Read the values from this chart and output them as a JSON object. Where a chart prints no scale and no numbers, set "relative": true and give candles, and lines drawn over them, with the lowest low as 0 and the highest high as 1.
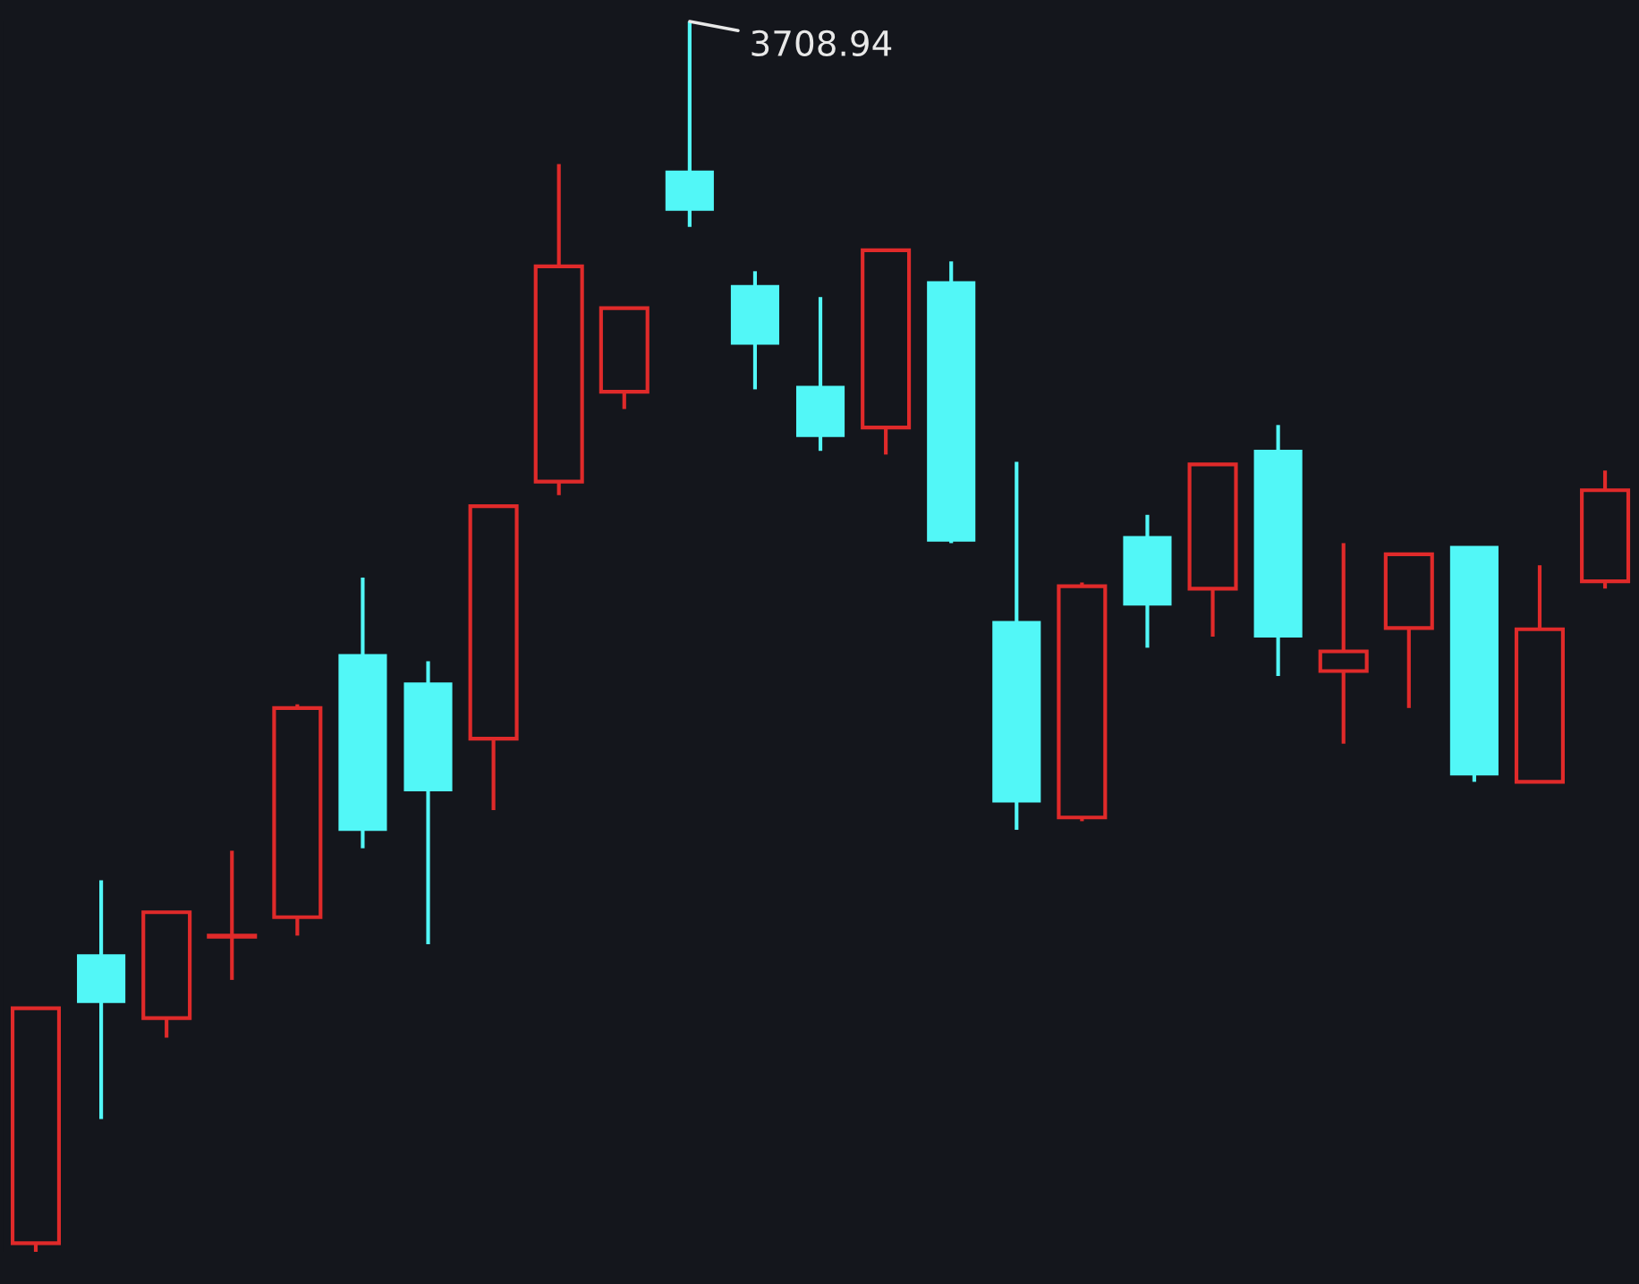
{
  "chart_data": {
    "type": "candlestick",
    "relative": true,
    "categories": [
      null,
      null,
      null,
      null,
      null,
      null,
      null,
      null,
      null,
      null,
      null,
      null,
      null,
      null,
      null,
      null,
      null,
      null,
      null,
      null,
      null,
      null,
      null,
      null,
      null
    ],
    "ohlc": [
      [
        0.007,
        0.199,
        0,
        0.198
      ],
      [
        0.241,
        0.302,
        0.108,
        0.203
      ],
      [
        0.19,
        0.276,
        0.174,
        0.276
      ],
      [
        0.256,
        0.326,
        0.221,
        0.257
      ],
      [
        0.272,
        0.445,
        0.257,
        0.442
      ],
      [
        0.485,
        0.548,
        0.328,
        0.343
      ],
      [
        0.462,
        0.48,
        0.25,
        0.375
      ],
      [
        0.417,
        0.606,
        0.359,
        0.606
      ],
      [
        0.626,
        0.884,
        0.615,
        0.801
      ],
      [
        0.699,
        0.767,
        0.685,
        0.767
      ],
      [
        0.878,
        1,
        0.833,
        0.847
      ],
      [
        0.785,
        0.797,
        0.701,
        0.738
      ],
      [
        0.703,
        0.776,
        0.651,
        0.663
      ],
      [
        0.67,
        0.814,
        0.648,
        0.814
      ],
      [
        0.788,
        0.805,
        0.576,
        0.578
      ],
      [
        0.512,
        0.642,
        0.343,
        0.366
      ],
      [
        0.353,
        0.544,
        0.35,
        0.541
      ],
      [
        0.581,
        0.599,
        0.491,
        0.526
      ],
      [
        0.539,
        0.64,
        0.5,
        0.64
      ],
      [
        0.651,
        0.672,
        0.468,
        0.5
      ],
      [
        0.472,
        0.576,
        0.413,
        0.488
      ],
      [
        0.507,
        0.567,
        0.442,
        0.567
      ],
      [
        0.573,
        0.573,
        0.382,
        0.388
      ],
      [
        0.382,
        0.558,
        0.382,
        0.506
      ],
      [
        0.545,
        0.635,
        0.539,
        0.619
      ]
    ],
    "colors": [
      "#e02a2a",
      "#52f7f7",
      "#e02a2a",
      "#e02a2a",
      "#e02a2a",
      "#52f7f7",
      "#52f7f7",
      "#e02a2a",
      "#e02a2a",
      "#e02a2a",
      "#52f7f7",
      "#52f7f7",
      "#52f7f7",
      "#e02a2a",
      "#52f7f7",
      "#52f7f7",
      "#e02a2a",
      "#52f7f7",
      "#e02a2a",
      "#52f7f7",
      "#e02a2a",
      "#e02a2a",
      "#52f7f7",
      "#e02a2a",
      "#e02a2a"
    ],
    "annotations": [
      "3708.94"
    ]
  }
}
